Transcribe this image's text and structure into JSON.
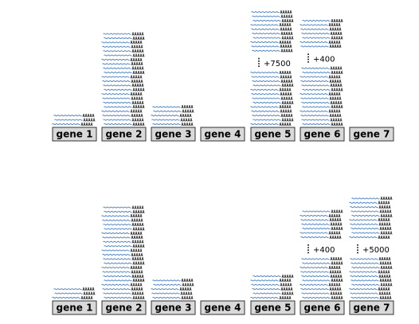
{
  "panels": [
    {
      "genes": [
        {
          "label": "gene 1",
          "reads": 3,
          "extra": ""
        },
        {
          "label": "gene 2",
          "reads": 22,
          "extra": ""
        },
        {
          "label": "gene 3",
          "reads": 5,
          "extra": ""
        },
        {
          "label": "gene 4",
          "reads": 0,
          "extra": ""
        },
        {
          "label": "gene 5",
          "reads": 13,
          "extra": "+7500",
          "reads_above": 10
        },
        {
          "label": "gene 6",
          "reads": 14,
          "extra": "+400",
          "reads_above": 7
        },
        {
          "label": "gene 7",
          "reads": 0,
          "extra": ""
        }
      ]
    },
    {
      "genes": [
        {
          "label": "gene 1",
          "reads": 3,
          "extra": ""
        },
        {
          "label": "gene 2",
          "reads": 22,
          "extra": ""
        },
        {
          "label": "gene 3",
          "reads": 5,
          "extra": ""
        },
        {
          "label": "gene 4",
          "reads": 0,
          "extra": ""
        },
        {
          "label": "gene 5",
          "reads": 6,
          "extra": ""
        },
        {
          "label": "gene 6",
          "reads": 10,
          "extra": "+400",
          "reads_above": 7
        },
        {
          "label": "gene 7",
          "reads": 10,
          "extra": "+5000",
          "reads_above": 10
        }
      ]
    }
  ],
  "read_tail": "AAAAA",
  "colors": {
    "read": "#4a7fc1",
    "box": "#d9d9d9",
    "box_border": "#333333"
  }
}
